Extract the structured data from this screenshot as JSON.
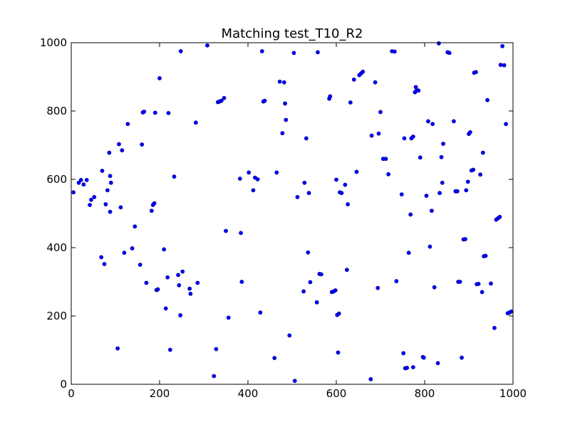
{
  "chart_data": {
    "type": "scatter",
    "title": "Matching test_T10_R2",
    "xlabel": "",
    "ylabel": "",
    "xlim": [
      0,
      1000
    ],
    "ylim": [
      0,
      1000
    ],
    "xticks": [
      "0",
      "200",
      "400",
      "600",
      "800",
      "1000"
    ],
    "yticks": [
      "0",
      "200",
      "400",
      "600",
      "800",
      "1000"
    ],
    "grid": false,
    "marker_color": "#0000ff",
    "marker_edge_color": "#00008b",
    "points": [
      [
        5,
        562
      ],
      [
        17,
        590
      ],
      [
        22,
        598
      ],
      [
        28,
        585
      ],
      [
        35,
        598
      ],
      [
        42,
        525
      ],
      [
        45,
        540
      ],
      [
        52,
        548
      ],
      [
        68,
        372
      ],
      [
        70,
        625
      ],
      [
        75,
        352
      ],
      [
        78,
        527
      ],
      [
        82,
        568
      ],
      [
        86,
        678
      ],
      [
        88,
        505
      ],
      [
        88,
        610
      ],
      [
        90,
        590
      ],
      [
        105,
        105
      ],
      [
        108,
        703
      ],
      [
        112,
        518
      ],
      [
        115,
        685
      ],
      [
        120,
        385
      ],
      [
        128,
        762
      ],
      [
        138,
        398
      ],
      [
        144,
        462
      ],
      [
        156,
        350
      ],
      [
        160,
        702
      ],
      [
        162,
        796
      ],
      [
        165,
        798
      ],
      [
        170,
        297
      ],
      [
        182,
        508
      ],
      [
        185,
        525
      ],
      [
        188,
        530
      ],
      [
        190,
        795
      ],
      [
        193,
        276
      ],
      [
        196,
        278
      ],
      [
        200,
        896
      ],
      [
        210,
        395
      ],
      [
        214,
        222
      ],
      [
        218,
        313
      ],
      [
        220,
        794
      ],
      [
        224,
        101
      ],
      [
        233,
        608
      ],
      [
        242,
        320
      ],
      [
        244,
        290
      ],
      [
        247,
        202
      ],
      [
        248,
        975
      ],
      [
        252,
        330
      ],
      [
        268,
        280
      ],
      [
        270,
        265
      ],
      [
        282,
        766
      ],
      [
        286,
        297
      ],
      [
        308,
        992
      ],
      [
        323,
        24
      ],
      [
        328,
        103
      ],
      [
        332,
        826
      ],
      [
        336,
        828
      ],
      [
        340,
        830
      ],
      [
        346,
        838
      ],
      [
        350,
        449
      ],
      [
        356,
        195
      ],
      [
        382,
        602
      ],
      [
        384,
        443
      ],
      [
        386,
        300
      ],
      [
        402,
        620
      ],
      [
        412,
        568
      ],
      [
        416,
        605
      ],
      [
        422,
        600
      ],
      [
        428,
        210
      ],
      [
        432,
        975
      ],
      [
        435,
        828
      ],
      [
        438,
        830
      ],
      [
        460,
        77
      ],
      [
        465,
        620
      ],
      [
        472,
        886
      ],
      [
        478,
        735
      ],
      [
        482,
        884
      ],
      [
        484,
        822
      ],
      [
        486,
        774
      ],
      [
        494,
        143
      ],
      [
        504,
        970
      ],
      [
        506,
        10
      ],
      [
        512,
        548
      ],
      [
        526,
        272
      ],
      [
        528,
        590
      ],
      [
        532,
        720
      ],
      [
        536,
        386
      ],
      [
        538,
        560
      ],
      [
        541,
        299
      ],
      [
        556,
        240
      ],
      [
        558,
        972
      ],
      [
        562,
        323
      ],
      [
        566,
        322
      ],
      [
        584,
        836
      ],
      [
        586,
        843
      ],
      [
        590,
        270
      ],
      [
        594,
        272
      ],
      [
        598,
        275
      ],
      [
        600,
        599
      ],
      [
        602,
        203
      ],
      [
        604,
        93
      ],
      [
        606,
        207
      ],
      [
        608,
        562
      ],
      [
        612,
        560
      ],
      [
        620,
        584
      ],
      [
        624,
        335
      ],
      [
        626,
        527
      ],
      [
        632,
        825
      ],
      [
        640,
        892
      ],
      [
        646,
        622
      ],
      [
        652,
        905
      ],
      [
        656,
        910
      ],
      [
        660,
        915
      ],
      [
        678,
        15
      ],
      [
        680,
        728
      ],
      [
        688,
        884
      ],
      [
        694,
        282
      ],
      [
        696,
        734
      ],
      [
        700,
        797
      ],
      [
        706,
        660
      ],
      [
        712,
        660
      ],
      [
        718,
        615
      ],
      [
        726,
        975
      ],
      [
        732,
        974
      ],
      [
        736,
        302
      ],
      [
        748,
        556
      ],
      [
        752,
        91
      ],
      [
        754,
        720
      ],
      [
        756,
        47
      ],
      [
        760,
        48
      ],
      [
        764,
        385
      ],
      [
        768,
        497
      ],
      [
        770,
        720
      ],
      [
        774,
        725
      ],
      [
        774,
        50
      ],
      [
        778,
        855
      ],
      [
        780,
        870
      ],
      [
        782,
        860
      ],
      [
        786,
        860
      ],
      [
        790,
        664
      ],
      [
        796,
        80
      ],
      [
        798,
        78
      ],
      [
        804,
        552
      ],
      [
        808,
        770
      ],
      [
        812,
        403
      ],
      [
        816,
        508
      ],
      [
        818,
        762
      ],
      [
        822,
        284
      ],
      [
        830,
        62
      ],
      [
        832,
        998
      ],
      [
        834,
        560
      ],
      [
        838,
        665
      ],
      [
        840,
        590
      ],
      [
        842,
        704
      ],
      [
        852,
        972
      ],
      [
        856,
        970
      ],
      [
        866,
        770
      ],
      [
        870,
        565
      ],
      [
        874,
        565
      ],
      [
        876,
        300
      ],
      [
        880,
        300
      ],
      [
        884,
        78
      ],
      [
        888,
        424
      ],
      [
        892,
        425
      ],
      [
        894,
        568
      ],
      [
        898,
        593
      ],
      [
        900,
        733
      ],
      [
        903,
        738
      ],
      [
        906,
        626
      ],
      [
        910,
        628
      ],
      [
        912,
        912
      ],
      [
        916,
        914
      ],
      [
        918,
        293
      ],
      [
        922,
        294
      ],
      [
        926,
        614
      ],
      [
        930,
        270
      ],
      [
        932,
        678
      ],
      [
        934,
        375
      ],
      [
        938,
        376
      ],
      [
        942,
        832
      ],
      [
        950,
        295
      ],
      [
        958,
        165
      ],
      [
        962,
        482
      ],
      [
        966,
        486
      ],
      [
        970,
        490
      ],
      [
        972,
        935
      ],
      [
        976,
        990
      ],
      [
        980,
        934
      ],
      [
        984,
        762
      ],
      [
        988,
        208
      ],
      [
        992,
        210
      ],
      [
        996,
        213
      ]
    ]
  }
}
